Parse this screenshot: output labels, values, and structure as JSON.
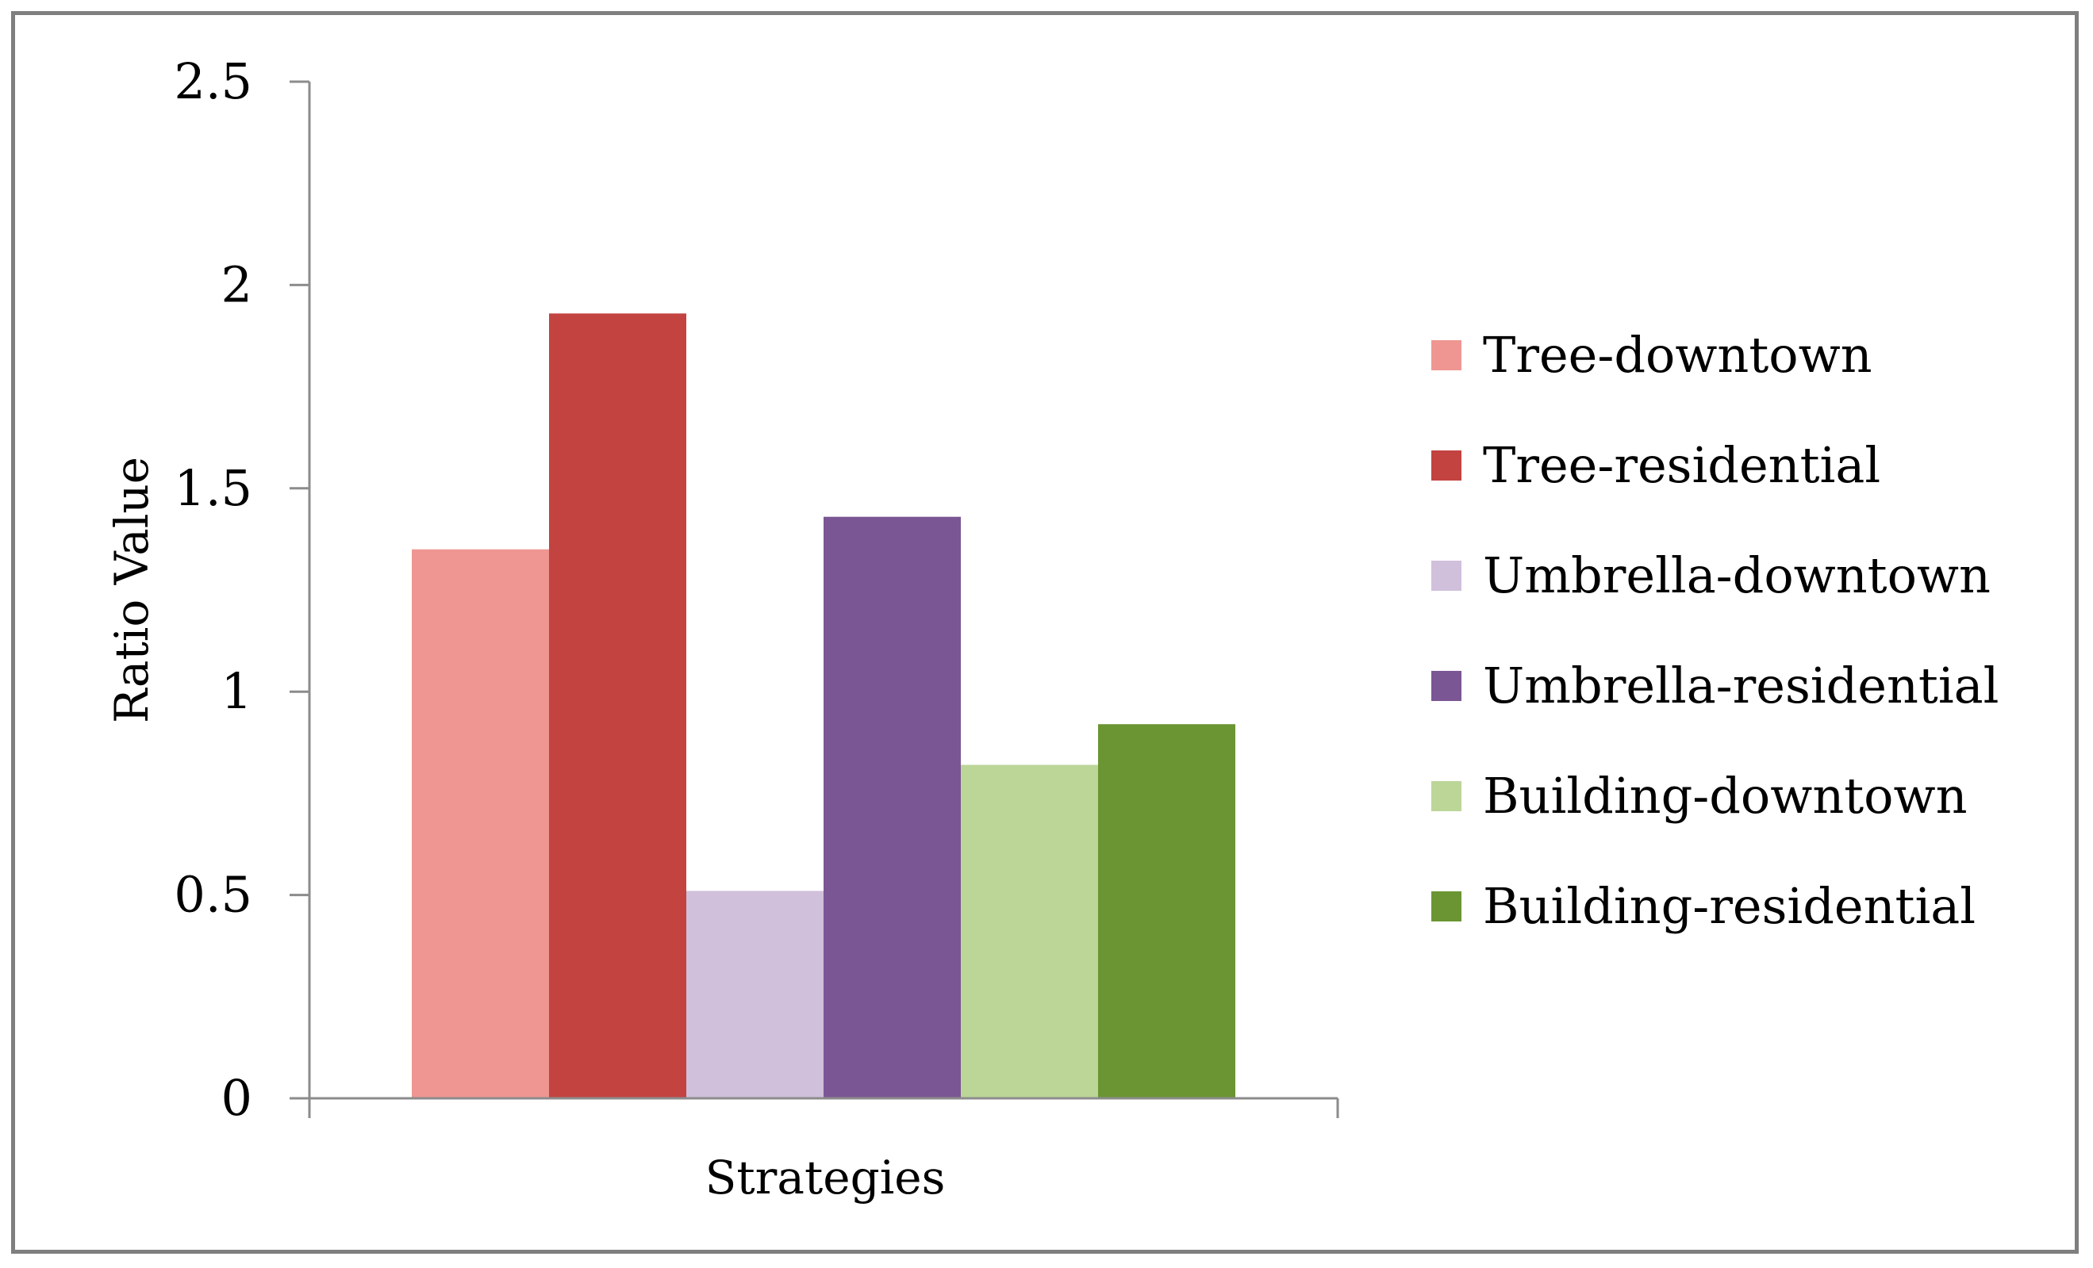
{
  "chart_data": {
    "type": "bar",
    "categories": [
      "Strategies"
    ],
    "series": [
      {
        "name": "Tree-downtown",
        "values": [
          1.35
        ],
        "color": "#ef9692"
      },
      {
        "name": "Tree-residential",
        "values": [
          1.93
        ],
        "color": "#c24340"
      },
      {
        "name": "Umbrella-downtown",
        "values": [
          0.51
        ],
        "color": "#d0c0dc"
      },
      {
        "name": "Umbrella-residential",
        "values": [
          1.43
        ],
        "color": "#7b5694"
      },
      {
        "name": "Building-downtown",
        "values": [
          0.82
        ],
        "color": "#bcd698"
      },
      {
        "name": "Building-residential",
        "values": [
          0.92
        ],
        "color": "#6a9532"
      }
    ],
    "xlabel": "Strategies",
    "ylabel": "Ratio Value",
    "ylim": [
      0,
      2.5
    ],
    "yticks": [
      0,
      0.5,
      1,
      1.5,
      2,
      2.5
    ],
    "ytick_labels": [
      "0",
      "0.5",
      "1",
      "1.5",
      "2",
      "2.5"
    ],
    "grid": false,
    "legend_position": "right"
  }
}
